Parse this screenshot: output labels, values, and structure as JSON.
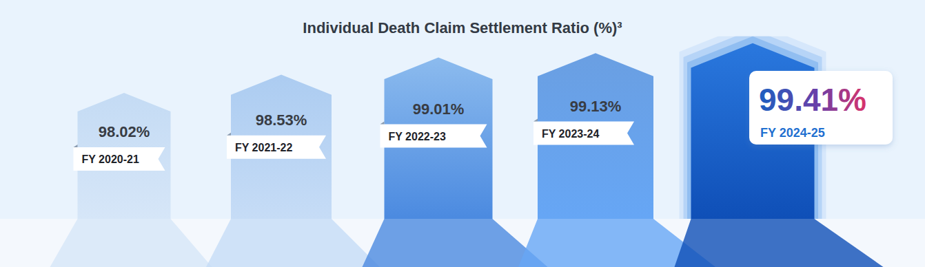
{
  "chart_data": {
    "type": "bar",
    "title": "Individual Death Claim Settlement Ratio (%)³",
    "categories": [
      "FY 2020-21",
      "FY 2021-22",
      "FY 2022-23",
      "FY 2023-24",
      "FY 2024-25"
    ],
    "values": [
      98.02,
      98.53,
      99.01,
      99.13,
      99.41
    ],
    "value_labels": [
      "98.02%",
      "98.53%",
      "99.01%",
      "99.13%",
      "99.41%"
    ],
    "ylim": [
      94.5,
      99.6
    ],
    "tick_labels": false,
    "data_labels": true
  }
}
